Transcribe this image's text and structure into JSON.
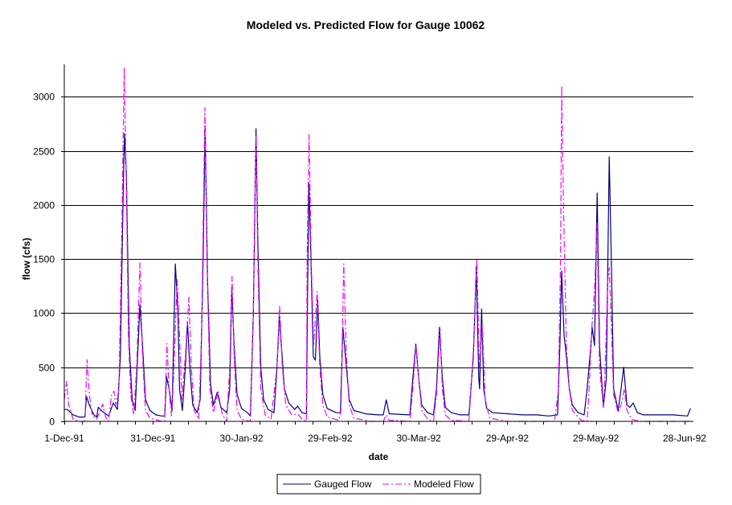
{
  "chart_data": {
    "type": "line",
    "title": "Modeled vs. Predicted Flow for Gauge 10062",
    "xlabel": "date",
    "ylabel": "flow (cfs)",
    "ylim": [
      0,
      3300
    ],
    "xlim_days": [
      0,
      213
    ],
    "x_unit": "days since 1-Dec-91",
    "yticks": [
      0,
      500,
      1000,
      1500,
      2000,
      2500,
      3000
    ],
    "ytick_labels": [
      "0",
      "500",
      "1000",
      "1500",
      "2000",
      "2500",
      "3000"
    ],
    "xtick_days": [
      0,
      30,
      60,
      90,
      120,
      150,
      180,
      210
    ],
    "xtick_labels": [
      "1-Dec-91",
      "31-Dec-91",
      "30-Jan-92",
      "29-Feb-92",
      "30-Mar-92",
      "29-Apr-92",
      "29-May-92",
      "28-Jun-92"
    ],
    "grid": "horizontal",
    "legend_position": "bottom",
    "series": [
      {
        "name": "Gauged Flow",
        "color": "#000080",
        "style": "solid",
        "points": [
          [
            0,
            110
          ],
          [
            1,
            110
          ],
          [
            3,
            60
          ],
          [
            5,
            40
          ],
          [
            7,
            40
          ],
          [
            7.5,
            230
          ],
          [
            8.5,
            150
          ],
          [
            10,
            60
          ],
          [
            11,
            40
          ],
          [
            11.5,
            130
          ],
          [
            13,
            90
          ],
          [
            15,
            50
          ],
          [
            16.6,
            170
          ],
          [
            18,
            110
          ],
          [
            19,
            600
          ],
          [
            20,
            2200
          ],
          [
            20.4,
            2660
          ],
          [
            21,
            2300
          ],
          [
            22,
            700
          ],
          [
            23,
            200
          ],
          [
            24,
            100
          ],
          [
            25,
            700
          ],
          [
            25.6,
            1080
          ],
          [
            26.5,
            700
          ],
          [
            27.5,
            200
          ],
          [
            29,
            100
          ],
          [
            31,
            60
          ],
          [
            33,
            50
          ],
          [
            34,
            50
          ],
          [
            34.6,
            415
          ],
          [
            35.5,
            300
          ],
          [
            36.5,
            100
          ],
          [
            37.6,
            1455
          ],
          [
            38.5,
            1000
          ],
          [
            39,
            300
          ],
          [
            40,
            100
          ],
          [
            41,
            500
          ],
          [
            41.7,
            920
          ],
          [
            42.5,
            500
          ],
          [
            43.5,
            150
          ],
          [
            45,
            80
          ],
          [
            46,
            200
          ],
          [
            47,
            1500
          ],
          [
            47.7,
            2730
          ],
          [
            48.5,
            1300
          ],
          [
            49.5,
            350
          ],
          [
            50.5,
            150
          ],
          [
            51.8,
            270
          ],
          [
            53,
            130
          ],
          [
            55,
            80
          ],
          [
            56,
            300
          ],
          [
            56.7,
            1240
          ],
          [
            57.5,
            700
          ],
          [
            58.5,
            250
          ],
          [
            60,
            120
          ],
          [
            62,
            80
          ],
          [
            63,
            50
          ],
          [
            64,
            1000
          ],
          [
            64.9,
            2705
          ],
          [
            65.5,
            1700
          ],
          [
            66.5,
            500
          ],
          [
            67.5,
            200
          ],
          [
            69,
            110
          ],
          [
            71,
            80
          ],
          [
            72,
            500
          ],
          [
            72.8,
            970
          ],
          [
            73.5,
            700
          ],
          [
            74.5,
            300
          ],
          [
            76,
            170
          ],
          [
            78,
            110
          ],
          [
            79,
            140
          ],
          [
            80.5,
            80
          ],
          [
            82,
            70
          ],
          [
            82.3,
            1000
          ],
          [
            82.8,
            2205
          ],
          [
            83.5,
            1500
          ],
          [
            84.3,
            600
          ],
          [
            85,
            565
          ],
          [
            85.8,
            1120
          ],
          [
            86.5,
            600
          ],
          [
            87.5,
            250
          ],
          [
            89,
            120
          ],
          [
            92,
            80
          ],
          [
            93.5,
            80
          ],
          [
            94.3,
            870
          ],
          [
            95.5,
            500
          ],
          [
            96.5,
            200
          ],
          [
            98,
            100
          ],
          [
            102,
            70
          ],
          [
            106,
            60
          ],
          [
            108,
            60
          ],
          [
            109,
            200
          ],
          [
            110,
            70
          ],
          [
            117,
            60
          ],
          [
            118,
            400
          ],
          [
            119,
            715
          ],
          [
            120,
            400
          ],
          [
            121,
            150
          ],
          [
            123,
            80
          ],
          [
            125,
            60
          ],
          [
            126,
            300
          ],
          [
            127,
            870
          ],
          [
            128,
            400
          ],
          [
            129,
            130
          ],
          [
            131,
            80
          ],
          [
            134,
            60
          ],
          [
            137,
            60
          ],
          [
            138.5,
            600
          ],
          [
            139.5,
            1430
          ],
          [
            140.3,
            400
          ],
          [
            140.6,
            300
          ],
          [
            141.3,
            1040
          ],
          [
            142,
            300
          ],
          [
            143,
            120
          ],
          [
            145,
            80
          ],
          [
            155,
            60
          ],
          [
            160,
            60
          ],
          [
            164,
            50
          ],
          [
            167,
            60
          ],
          [
            167.8,
            700
          ],
          [
            168.4,
            1390
          ],
          [
            169.2,
            800
          ],
          [
            170,
            600
          ],
          [
            171,
            300
          ],
          [
            172,
            150
          ],
          [
            174,
            80
          ],
          [
            176,
            60
          ],
          [
            177,
            300
          ],
          [
            178.3,
            700
          ],
          [
            178.7,
            870
          ],
          [
            179.5,
            700
          ],
          [
            180.4,
            2110
          ],
          [
            181.2,
            700
          ],
          [
            182.5,
            130
          ],
          [
            183.5,
            400
          ],
          [
            184.5,
            2445
          ],
          [
            185.2,
            1500
          ],
          [
            186,
            300
          ],
          [
            187.5,
            100
          ],
          [
            188.5,
            300
          ],
          [
            189.4,
            500
          ],
          [
            190.5,
            150
          ],
          [
            191.5,
            130
          ],
          [
            192.6,
            170
          ],
          [
            194,
            80
          ],
          [
            196,
            60
          ],
          [
            200,
            60
          ],
          [
            206,
            60
          ],
          [
            211,
            50
          ],
          [
            212,
            120
          ]
        ]
      },
      {
        "name": "Modeled Flow",
        "color": "#FF00FF",
        "style": "dash-dot",
        "points": [
          [
            0,
            200
          ],
          [
            0.8,
            370
          ],
          [
            1.5,
            150
          ],
          [
            3,
            20
          ],
          [
            5,
            0
          ],
          [
            7,
            0
          ],
          [
            7.7,
            570
          ],
          [
            8.5,
            250
          ],
          [
            9.5,
            50
          ],
          [
            11,
            20
          ],
          [
            12.2,
            100
          ],
          [
            13,
            160
          ],
          [
            14,
            40
          ],
          [
            15,
            0
          ],
          [
            16,
            250
          ],
          [
            16.8,
            280
          ],
          [
            17.5,
            150
          ],
          [
            18.5,
            300
          ],
          [
            19.5,
            1800
          ],
          [
            20.3,
            3270
          ],
          [
            21,
            2200
          ],
          [
            21.7,
            800
          ],
          [
            22.5,
            250
          ],
          [
            23.5,
            60
          ],
          [
            24.5,
            500
          ],
          [
            25.6,
            1465
          ],
          [
            26.5,
            600
          ],
          [
            27.5,
            100
          ],
          [
            29,
            30
          ],
          [
            33,
            0
          ],
          [
            34,
            0
          ],
          [
            34.7,
            720
          ],
          [
            35.5,
            300
          ],
          [
            36.3,
            50
          ],
          [
            37,
            400
          ],
          [
            38.2,
            1310
          ],
          [
            39,
            800
          ],
          [
            39.8,
            200
          ],
          [
            41,
            600
          ],
          [
            42.2,
            1150
          ],
          [
            43,
            500
          ],
          [
            44,
            100
          ],
          [
            45.5,
            20
          ],
          [
            46.5,
            800
          ],
          [
            47.6,
            2900
          ],
          [
            48.3,
            1500
          ],
          [
            49.3,
            300
          ],
          [
            50.5,
            80
          ],
          [
            52,
            280
          ],
          [
            53.5,
            60
          ],
          [
            55,
            0
          ],
          [
            56,
            500
          ],
          [
            56.8,
            1340
          ],
          [
            57.5,
            600
          ],
          [
            58.5,
            100
          ],
          [
            60,
            20
          ],
          [
            63,
            0
          ],
          [
            64,
            1000
          ],
          [
            64.9,
            2650
          ],
          [
            65.6,
            1400
          ],
          [
            66.5,
            300
          ],
          [
            68,
            60
          ],
          [
            70,
            20
          ],
          [
            72,
            500
          ],
          [
            72.9,
            1070
          ],
          [
            73.8,
            500
          ],
          [
            75,
            150
          ],
          [
            77,
            60
          ],
          [
            79,
            70
          ],
          [
            80.5,
            20
          ],
          [
            82,
            0
          ],
          [
            82.2,
            1500
          ],
          [
            82.9,
            2650
          ],
          [
            83.6,
            1500
          ],
          [
            84.4,
            700
          ],
          [
            85.6,
            1200
          ],
          [
            86.5,
            500
          ],
          [
            87.5,
            150
          ],
          [
            89,
            40
          ],
          [
            93,
            10
          ],
          [
            93.7,
            100
          ],
          [
            94.6,
            1455
          ],
          [
            95.5,
            600
          ],
          [
            96.5,
            150
          ],
          [
            98,
            30
          ],
          [
            104,
            0
          ],
          [
            108,
            0
          ],
          [
            109,
            60
          ],
          [
            110,
            10
          ],
          [
            117,
            0
          ],
          [
            118,
            300
          ],
          [
            119,
            700
          ],
          [
            120,
            400
          ],
          [
            121,
            100
          ],
          [
            123,
            20
          ],
          [
            125,
            0
          ],
          [
            126,
            250
          ],
          [
            127.2,
            860
          ],
          [
            128,
            300
          ],
          [
            129,
            60
          ],
          [
            131,
            10
          ],
          [
            137,
            0
          ],
          [
            138.6,
            700
          ],
          [
            139.7,
            1500
          ],
          [
            140.5,
            500
          ],
          [
            141.5,
            900
          ],
          [
            142.5,
            200
          ],
          [
            144,
            30
          ],
          [
            150,
            0
          ],
          [
            166,
            0
          ],
          [
            167.3,
            300
          ],
          [
            168,
            1500
          ],
          [
            168.4,
            3100
          ],
          [
            169,
            2000
          ],
          [
            170,
            700
          ],
          [
            171,
            300
          ],
          [
            172,
            100
          ],
          [
            175,
            10
          ],
          [
            177,
            0
          ],
          [
            177.5,
            200
          ],
          [
            178.6,
            860
          ],
          [
            179.5,
            1200
          ],
          [
            180.4,
            1830
          ],
          [
            181.2,
            500
          ],
          [
            182.5,
            130
          ],
          [
            183,
            400
          ],
          [
            184,
            1300
          ],
          [
            184.5,
            1420
          ],
          [
            185.2,
            900
          ],
          [
            186,
            250
          ],
          [
            187.5,
            80
          ],
          [
            188.5,
            150
          ],
          [
            189.6,
            300
          ],
          [
            190.5,
            100
          ],
          [
            192,
            20
          ],
          [
            195,
            0
          ],
          [
            212,
            0
          ]
        ]
      }
    ]
  }
}
